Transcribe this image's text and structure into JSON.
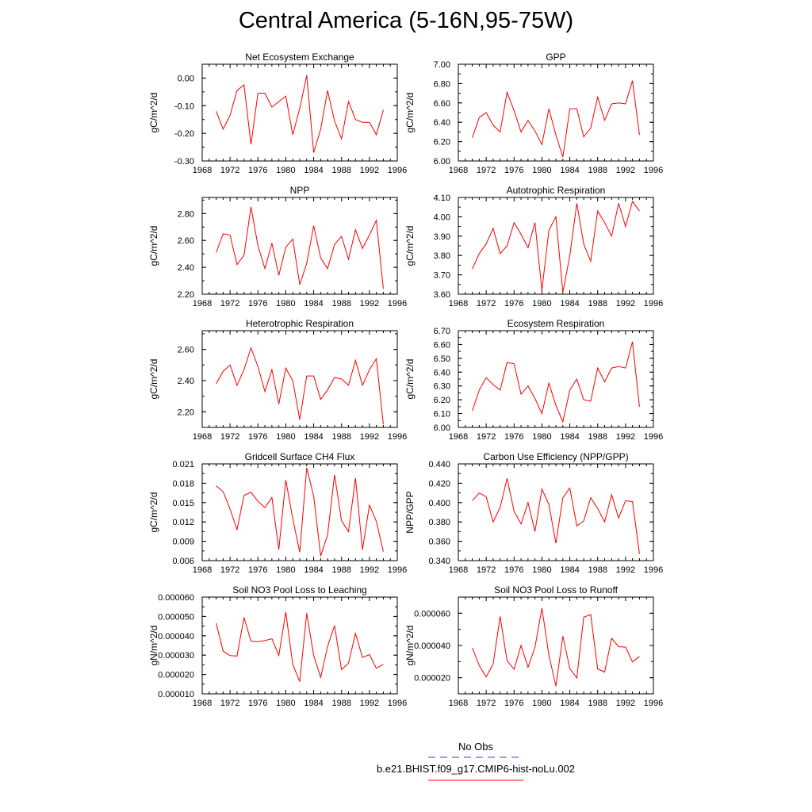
{
  "figure": {
    "title": "Central America (5-16N,95-75W)"
  },
  "legend": {
    "obs_label": "No Obs",
    "obs_color": "#3b3bdc",
    "case_label": "b.e21.BHIST.f09_g17.CMIP6-hist-noLu.002",
    "case_color": "#ff0000"
  },
  "chart_data": [
    {
      "type": "line",
      "title": "Net Ecosystem Exchange",
      "ylabel": "gC/m^2/d",
      "xlim": [
        1968,
        1996
      ],
      "xticks": [
        "1968",
        "1972",
        "1976",
        "1980",
        "1984",
        "1988",
        "1992",
        "1996"
      ],
      "ylim": [
        -0.3,
        0.05
      ],
      "yticks": [
        "0.00",
        "-0.10",
        "-0.20",
        "-0.30"
      ],
      "ytick_values": [
        0.0,
        -0.1,
        -0.2,
        -0.3
      ],
      "x": [
        1970,
        1971,
        1972,
        1973,
        1974,
        1975,
        1976,
        1977,
        1978,
        1979,
        1980,
        1981,
        1982,
        1983,
        1984,
        1985,
        1986,
        1987,
        1988,
        1989,
        1990,
        1991,
        1992,
        1993,
        1994
      ],
      "series": [
        {
          "color": "#ff0000",
          "values": [
            -0.12,
            -0.185,
            -0.135,
            -0.045,
            -0.025,
            -0.24,
            -0.055,
            -0.055,
            -0.105,
            -0.085,
            -0.065,
            -0.205,
            -0.11,
            0.01,
            -0.27,
            -0.185,
            -0.045,
            -0.155,
            -0.22,
            -0.085,
            -0.15,
            -0.16,
            -0.16,
            -0.205,
            -0.115
          ]
        }
      ]
    },
    {
      "type": "line",
      "title": "GPP",
      "ylabel": "gC/m^2/d",
      "xlim": [
        1968,
        1996
      ],
      "xticks": [
        "1968",
        "1972",
        "1976",
        "1980",
        "1984",
        "1988",
        "1992",
        "1996"
      ],
      "ylim": [
        6.0,
        7.0
      ],
      "yticks": [
        "7.00",
        "6.80",
        "6.60",
        "6.40",
        "6.20",
        "6.00"
      ],
      "ytick_values": [
        7.0,
        6.8,
        6.6,
        6.4,
        6.2,
        6.0
      ],
      "x": [
        1970,
        1971,
        1972,
        1973,
        1974,
        1975,
        1976,
        1977,
        1978,
        1979,
        1980,
        1981,
        1982,
        1983,
        1984,
        1985,
        1986,
        1987,
        1988,
        1989,
        1990,
        1991,
        1992,
        1993,
        1994
      ],
      "series": [
        {
          "color": "#ff0000",
          "values": [
            6.24,
            6.45,
            6.5,
            6.37,
            6.3,
            6.71,
            6.52,
            6.3,
            6.42,
            6.31,
            6.17,
            6.54,
            6.27,
            6.04,
            6.54,
            6.54,
            6.25,
            6.34,
            6.66,
            6.42,
            6.59,
            6.6,
            6.59,
            6.83,
            6.27
          ]
        }
      ]
    },
    {
      "type": "line",
      "title": "NPP",
      "ylabel": "gC/m^2/d",
      "xlim": [
        1968,
        1996
      ],
      "xticks": [
        "1968",
        "1972",
        "1976",
        "1980",
        "1984",
        "1988",
        "1992",
        "1996"
      ],
      "ylim": [
        2.2,
        2.92
      ],
      "yticks": [
        "2.80",
        "2.60",
        "2.40",
        "2.20"
      ],
      "ytick_values": [
        2.8,
        2.6,
        2.4,
        2.2
      ],
      "x": [
        1970,
        1971,
        1972,
        1973,
        1974,
        1975,
        1976,
        1977,
        1978,
        1979,
        1980,
        1981,
        1982,
        1983,
        1984,
        1985,
        1986,
        1987,
        1988,
        1989,
        1990,
        1991,
        1992,
        1993,
        1994
      ],
      "series": [
        {
          "color": "#ff0000",
          "values": [
            2.51,
            2.65,
            2.64,
            2.42,
            2.49,
            2.85,
            2.56,
            2.39,
            2.58,
            2.34,
            2.55,
            2.61,
            2.27,
            2.43,
            2.71,
            2.47,
            2.39,
            2.57,
            2.63,
            2.46,
            2.68,
            2.54,
            2.64,
            2.75,
            2.24
          ]
        }
      ]
    },
    {
      "type": "line",
      "title": "Autotrophic Respiration",
      "ylabel": "gC/m^2/d",
      "xlim": [
        1968,
        1996
      ],
      "xticks": [
        "1968",
        "1972",
        "1976",
        "1980",
        "1984",
        "1988",
        "1992",
        "1996"
      ],
      "ylim": [
        3.6,
        4.1
      ],
      "yticks": [
        "4.10",
        "4.00",
        "3.90",
        "3.80",
        "3.70",
        "3.60"
      ],
      "ytick_values": [
        4.1,
        4.0,
        3.9,
        3.8,
        3.7,
        3.6
      ],
      "x": [
        1970,
        1971,
        1972,
        1973,
        1974,
        1975,
        1976,
        1977,
        1978,
        1979,
        1980,
        1981,
        1982,
        1983,
        1984,
        1985,
        1986,
        1987,
        1988,
        1989,
        1990,
        1991,
        1992,
        1993,
        1994
      ],
      "series": [
        {
          "color": "#ff0000",
          "values": [
            3.73,
            3.81,
            3.86,
            3.94,
            3.81,
            3.85,
            3.97,
            3.91,
            3.84,
            3.97,
            3.62,
            3.93,
            4.0,
            3.61,
            3.8,
            4.07,
            3.86,
            3.77,
            4.03,
            3.97,
            3.9,
            4.07,
            3.95,
            4.08,
            4.03
          ]
        }
      ]
    },
    {
      "type": "line",
      "title": "Heterotrophic Respiration",
      "ylabel": "gC/m^2/d",
      "xlim": [
        1968,
        1996
      ],
      "xticks": [
        "1968",
        "1972",
        "1976",
        "1980",
        "1984",
        "1988",
        "1992",
        "1996"
      ],
      "ylim": [
        2.1,
        2.72
      ],
      "yticks": [
        "2.60",
        "2.40",
        "2.20"
      ],
      "ytick_values": [
        2.6,
        2.4,
        2.2
      ],
      "x": [
        1970,
        1971,
        1972,
        1973,
        1974,
        1975,
        1976,
        1977,
        1978,
        1979,
        1980,
        1981,
        1982,
        1983,
        1984,
        1985,
        1986,
        1987,
        1988,
        1989,
        1990,
        1991,
        1992,
        1993,
        1994
      ],
      "series": [
        {
          "color": "#ff0000",
          "values": [
            2.38,
            2.46,
            2.5,
            2.37,
            2.47,
            2.61,
            2.49,
            2.33,
            2.47,
            2.25,
            2.48,
            2.4,
            2.15,
            2.43,
            2.43,
            2.28,
            2.34,
            2.42,
            2.41,
            2.37,
            2.53,
            2.37,
            2.47,
            2.54,
            2.12
          ]
        }
      ]
    },
    {
      "type": "line",
      "title": "Ecosystem Respiration",
      "ylabel": "gC/m^2/d",
      "xlim": [
        1968,
        1996
      ],
      "xticks": [
        "1968",
        "1972",
        "1976",
        "1980",
        "1984",
        "1988",
        "1992",
        "1996"
      ],
      "ylim": [
        6.0,
        6.7
      ],
      "yticks": [
        "6.70",
        "6.60",
        "6.50",
        "6.40",
        "6.30",
        "6.20",
        "6.10",
        "6.00"
      ],
      "ytick_values": [
        6.7,
        6.6,
        6.5,
        6.4,
        6.3,
        6.2,
        6.1,
        6.0
      ],
      "x": [
        1970,
        1971,
        1972,
        1973,
        1974,
        1975,
        1976,
        1977,
        1978,
        1979,
        1980,
        1981,
        1982,
        1983,
        1984,
        1985,
        1986,
        1987,
        1988,
        1989,
        1990,
        1991,
        1992,
        1993,
        1994
      ],
      "series": [
        {
          "color": "#ff0000",
          "values": [
            6.12,
            6.27,
            6.36,
            6.31,
            6.27,
            6.47,
            6.46,
            6.24,
            6.3,
            6.21,
            6.1,
            6.32,
            6.16,
            6.04,
            6.27,
            6.35,
            6.2,
            6.19,
            6.43,
            6.33,
            6.43,
            6.44,
            6.43,
            6.62,
            6.15
          ]
        }
      ]
    },
    {
      "type": "line",
      "title": "Gridcell Surface CH4 Flux",
      "ylabel": "gC/m^2/d",
      "xlim": [
        1968,
        1996
      ],
      "xticks": [
        "1968",
        "1972",
        "1976",
        "1980",
        "1984",
        "1988",
        "1992",
        "1996"
      ],
      "ylim": [
        0.006,
        0.021
      ],
      "yticks": [
        "0.021",
        "0.018",
        "0.015",
        "0.012",
        "0.009",
        "0.006"
      ],
      "ytick_values": [
        0.021,
        0.018,
        0.015,
        0.012,
        0.009,
        0.006
      ],
      "x": [
        1970,
        1971,
        1972,
        1973,
        1974,
        1975,
        1976,
        1977,
        1978,
        1979,
        1980,
        1981,
        1982,
        1983,
        1984,
        1985,
        1986,
        1987,
        1988,
        1989,
        1990,
        1991,
        1992,
        1993,
        1994
      ],
      "series": [
        {
          "color": "#ff0000",
          "values": [
            0.0176,
            0.0167,
            0.014,
            0.0108,
            0.0161,
            0.0166,
            0.0152,
            0.0142,
            0.0158,
            0.0077,
            0.0185,
            0.0125,
            0.0073,
            0.0204,
            0.016,
            0.0067,
            0.01,
            0.0193,
            0.0122,
            0.0105,
            0.0188,
            0.0077,
            0.0146,
            0.0121,
            0.0074
          ]
        }
      ]
    },
    {
      "type": "line",
      "title": "Carbon Use Efficiency (NPP/GPP)",
      "ylabel": "NPP/GPP",
      "xlim": [
        1968,
        1996
      ],
      "xticks": [
        "1968",
        "1972",
        "1976",
        "1980",
        "1984",
        "1988",
        "1992",
        "1996"
      ],
      "ylim": [
        0.34,
        0.44
      ],
      "yticks": [
        "0.440",
        "0.420",
        "0.400",
        "0.380",
        "0.360",
        "0.340"
      ],
      "ytick_values": [
        0.44,
        0.42,
        0.4,
        0.38,
        0.36,
        0.34
      ],
      "x": [
        1970,
        1971,
        1972,
        1973,
        1974,
        1975,
        1976,
        1977,
        1978,
        1979,
        1980,
        1981,
        1982,
        1983,
        1984,
        1985,
        1986,
        1987,
        1988,
        1989,
        1990,
        1991,
        1992,
        1993,
        1994
      ],
      "series": [
        {
          "color": "#ff0000",
          "values": [
            0.402,
            0.41,
            0.406,
            0.38,
            0.395,
            0.425,
            0.391,
            0.378,
            0.4,
            0.37,
            0.414,
            0.398,
            0.358,
            0.405,
            0.415,
            0.376,
            0.381,
            0.405,
            0.394,
            0.38,
            0.408,
            0.384,
            0.402,
            0.401,
            0.347
          ]
        }
      ]
    },
    {
      "type": "line",
      "title": "Soil NO3 Pool Loss to Leaching",
      "ylabel": "gN/m^2/d",
      "xlim": [
        1968,
        1996
      ],
      "xticks": [
        "1968",
        "1972",
        "1976",
        "1980",
        "1984",
        "1988",
        "1992",
        "1996"
      ],
      "ylim": [
        1e-05,
        6e-05
      ],
      "yticks": [
        "0.000060",
        "0.000050",
        "0.000040",
        "0.000030",
        "0.000020",
        "0.000010"
      ],
      "ytick_values": [
        6e-05,
        5e-05,
        4e-05,
        3e-05,
        2e-05,
        1e-05
      ],
      "x": [
        1970,
        1971,
        1972,
        1973,
        1974,
        1975,
        1976,
        1977,
        1978,
        1979,
        1980,
        1981,
        1982,
        1983,
        1984,
        1985,
        1986,
        1987,
        1988,
        1989,
        1990,
        1991,
        1992,
        1993,
        1994
      ],
      "series": [
        {
          "color": "#ff0000",
          "values": [
            4.65e-05,
            3.2e-05,
            2.98e-05,
            2.95e-05,
            4.95e-05,
            3.72e-05,
            3.7e-05,
            3.75e-05,
            3.85e-05,
            2.98e-05,
            5.22e-05,
            2.53e-05,
            1.63e-05,
            5.17e-05,
            2.98e-05,
            1.85e-05,
            3.45e-05,
            4.53e-05,
            2.25e-05,
            2.58e-05,
            4.12e-05,
            2.88e-05,
            3.03e-05,
            2.32e-05,
            2.53e-05
          ]
        }
      ]
    },
    {
      "type": "line",
      "title": "Soil NO3 Pool Loss to Runoff",
      "ylabel": "gN/m^2/d",
      "xlim": [
        1968,
        1996
      ],
      "xticks": [
        "1968",
        "1972",
        "1976",
        "1980",
        "1984",
        "1988",
        "1992",
        "1996"
      ],
      "ylim": [
        1e-05,
        7e-05
      ],
      "yticks": [
        "0.000060",
        "0.000040",
        "0.000020"
      ],
      "ytick_values": [
        6e-05,
        4e-05,
        2e-05
      ],
      "x": [
        1970,
        1971,
        1972,
        1973,
        1974,
        1975,
        1976,
        1977,
        1978,
        1979,
        1980,
        1981,
        1982,
        1983,
        1984,
        1985,
        1986,
        1987,
        1988,
        1989,
        1990,
        1991,
        1992,
        1993,
        1994
      ],
      "series": [
        {
          "color": "#ff0000",
          "values": [
            3.85e-05,
            2.75e-05,
            2.05e-05,
            2.85e-05,
            5.8e-05,
            3.05e-05,
            2.53e-05,
            4e-05,
            2.65e-05,
            3.88e-05,
            6.32e-05,
            3.4e-05,
            1.48e-05,
            4.58e-05,
            2.57e-05,
            1.98e-05,
            5.75e-05,
            5.92e-05,
            2.55e-05,
            2.35e-05,
            4.45e-05,
            3.92e-05,
            3.9e-05,
            2.98e-05,
            3.32e-05
          ]
        }
      ]
    }
  ]
}
